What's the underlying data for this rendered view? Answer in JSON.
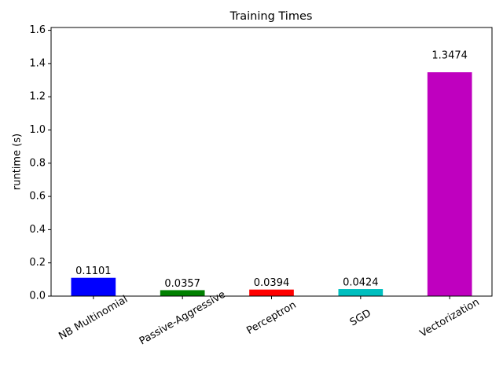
{
  "chart_data": {
    "type": "bar",
    "title": "Training Times",
    "y_label": "runtime (s)",
    "categories": [
      "NB Multinomial",
      "Passive-Aggressive",
      "Perceptron",
      "SGD",
      "Vectorization"
    ],
    "values": [
      0.1101,
      0.0357,
      0.0394,
      0.0424,
      1.3474
    ],
    "colors": [
      "#0000ff",
      "#008000",
      "#ff0000",
      "#00bfbf",
      "#bf00bf"
    ],
    "ylim": [
      0,
      1.6169
    ],
    "yticks": [
      {
        "value": 0,
        "label": "0.0"
      },
      0.2,
      0.4,
      0.6,
      0.8,
      {
        "value": 1,
        "label": "1.0"
      },
      1.2,
      1.4,
      1.6
    ]
  }
}
